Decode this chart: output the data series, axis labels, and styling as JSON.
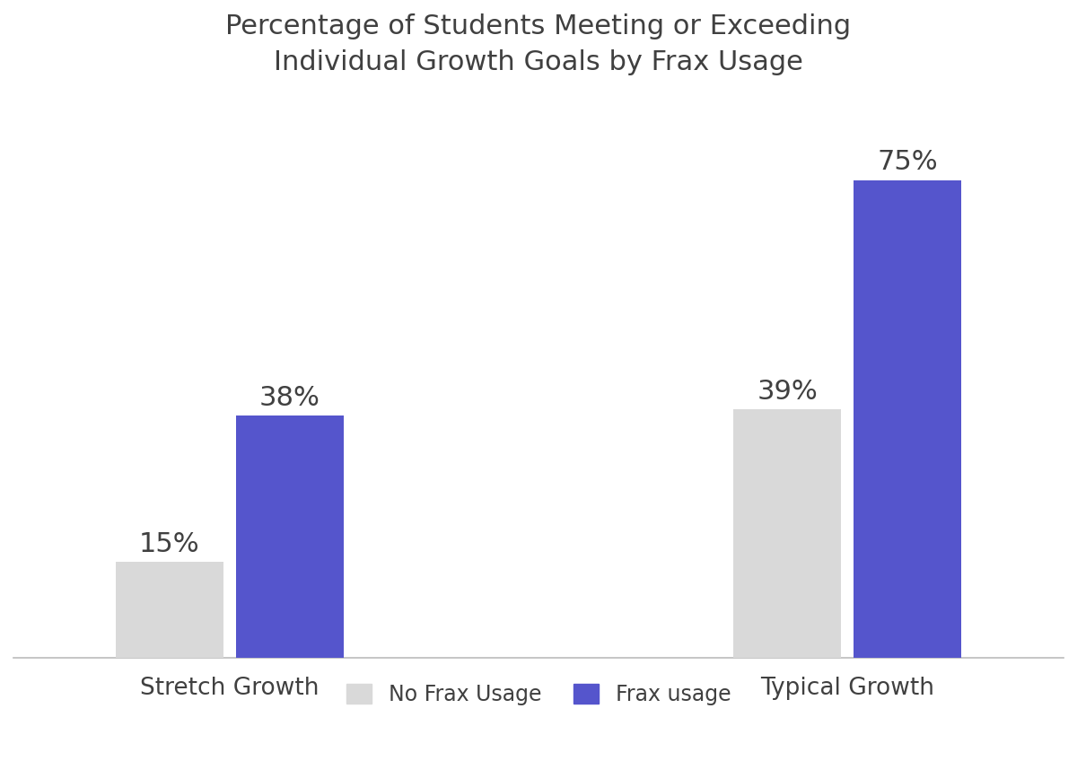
{
  "title": "Percentage of Students Meeting or Exceeding\nIndividual Growth Goals by Frax Usage",
  "categories": [
    "Stretch Growth",
    "Typical Growth"
  ],
  "no_frax_values": [
    15,
    39
  ],
  "frax_values": [
    38,
    75
  ],
  "no_frax_color": "#d9d9d9",
  "frax_color": "#5555cc",
  "bar_width": 0.35,
  "ylim": [
    0,
    88
  ],
  "title_fontsize": 22,
  "annot_fontsize": 22,
  "legend_fontsize": 17,
  "tick_fontsize": 19,
  "background_color": "#ffffff",
  "legend_labels": [
    "No Frax Usage",
    "Frax usage"
  ],
  "text_color": "#404040"
}
